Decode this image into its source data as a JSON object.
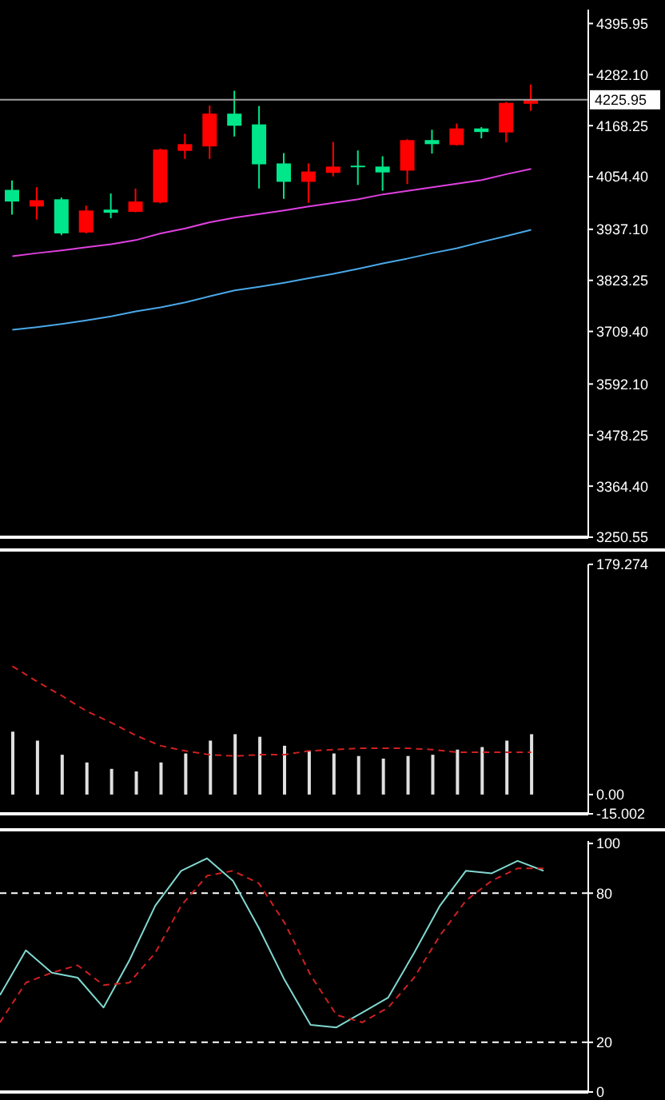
{
  "chart_data": [
    {
      "type": "candlestick",
      "categories": [
        null,
        null,
        null,
        null,
        null,
        null,
        null,
        null,
        null,
        null,
        null,
        null,
        null,
        null,
        null,
        null,
        null,
        null,
        null,
        null,
        null,
        null
      ],
      "tick_labels": "y",
      "ohlc": [
        [
          4025,
          4046,
          3970,
          3999
        ],
        [
          3988,
          4031,
          3959,
          4002
        ],
        [
          4004,
          4008,
          3924,
          3928
        ],
        [
          3930,
          3990,
          3928,
          3979
        ],
        [
          3981,
          4017,
          3962,
          3974
        ],
        [
          3976,
          4028,
          3975,
          3999
        ],
        [
          3997,
          4117,
          3995,
          4115
        ],
        [
          4112,
          4150,
          4094,
          4127
        ],
        [
          4122,
          4213,
          4094,
          4195
        ],
        [
          4195,
          4246,
          4144,
          4168
        ],
        [
          4171,
          4212,
          4028,
          4082
        ],
        [
          4084,
          4107,
          4005,
          4043
        ],
        [
          4043,
          4084,
          3996,
          4066
        ],
        [
          4063,
          4132,
          4055,
          4077
        ],
        [
          4079,
          4113,
          4036,
          4077
        ],
        [
          4077,
          4100,
          4023,
          4064
        ],
        [
          4068,
          4138,
          4038,
          4136
        ],
        [
          4136,
          4159,
          4106,
          4127
        ],
        [
          4125,
          4173,
          4124,
          4162
        ],
        [
          4162,
          4165,
          4140,
          4154
        ],
        [
          4153,
          4221,
          4131,
          4219
        ],
        [
          4217,
          4260,
          4201,
          4225.95
        ]
      ],
      "colors": [
        "#00e68a",
        "#ff0000",
        "#00e68a",
        "#ff0000",
        "#00e68a",
        "#ff0000",
        "#ff0000",
        "#ff0000",
        "#ff0000",
        "#00e68a",
        "#00e68a",
        "#00e68a",
        "#ff0000",
        "#ff0000",
        "#00e68a",
        "#00e68a",
        "#ff0000",
        "#00e68a",
        "#ff0000",
        "#00e68a",
        "#ff0000",
        "#ff0000"
      ],
      "series": [
        {
          "type": "line",
          "color": "#e040e0",
          "values": [
            3877,
            3884,
            3890,
            3897,
            3904,
            3913,
            3928,
            3939,
            3953,
            3963,
            3971,
            3979,
            3988,
            3996,
            4004,
            4015,
            4023,
            4031,
            4039,
            4047,
            4060,
            4072
          ]
        },
        {
          "type": "line",
          "color": "#4aa8e8",
          "values": [
            3713,
            3719,
            3726,
            3734,
            3743,
            3754,
            3763,
            3774,
            3788,
            3801,
            3809,
            3818,
            3828,
            3838,
            3849,
            3861,
            3872,
            3884,
            3895,
            3909,
            3922,
            3936
          ]
        }
      ],
      "ylim": [
        3250.55,
        4427
      ],
      "yticks": [
        4395.95,
        {
          "value": 4282.1,
          "label": "4282.10"
        },
        4168.25,
        {
          "value": 4054.4,
          "label": "4054.40"
        },
        {
          "value": 3937.1,
          "label": "3937.10"
        },
        3823.25,
        {
          "value": 3709.4,
          "label": "3709.40"
        },
        {
          "value": 3592.1,
          "label": "3592.10"
        },
        3478.25,
        {
          "value": 3364.4,
          "label": "3364.40"
        },
        3250.55
      ],
      "ref_lines": [
        {
          "axis": "y",
          "value": 4225.95,
          "label": "4225.95",
          "color": "#a0a0a0"
        }
      ]
    },
    {
      "type": "bar",
      "categories": [
        null,
        null,
        null,
        null,
        null,
        null,
        null,
        null,
        null,
        null,
        null,
        null,
        null,
        null,
        null,
        null,
        null,
        null,
        null,
        null,
        null,
        null
      ],
      "tick_labels": "y",
      "series": [
        {
          "type": "bar",
          "color": "#e0e0e0",
          "values": [
            49,
            42,
            31,
            25,
            20,
            18,
            25,
            32,
            42,
            47,
            45,
            38,
            34,
            32,
            30,
            28,
            30,
            31,
            35,
            37,
            42,
            47
          ]
        },
        {
          "type": "line",
          "color": "#d02020",
          "line_style": "dashed",
          "values": [
            100,
            88,
            77,
            65,
            56,
            46,
            38,
            34,
            31,
            30,
            31,
            31,
            34,
            35,
            36,
            36,
            36,
            35,
            33,
            33,
            33,
            33
          ]
        }
      ],
      "ylim": [
        -15.002,
        179.274
      ],
      "yticks": [
        179.274,
        {
          "value": 0,
          "label": "0.00"
        },
        -15.002
      ]
    },
    {
      "type": "line",
      "categories": [
        null,
        null,
        null,
        null,
        null,
        null,
        null,
        null,
        null,
        null,
        null,
        null,
        null,
        null,
        null,
        null,
        null,
        null,
        null,
        null,
        null,
        null
      ],
      "tick_labels": "y",
      "series": [
        {
          "type": "line",
          "color": "#80d8d0",
          "values": [
            39,
            57,
            48,
            46,
            34,
            53,
            75,
            89,
            94,
            85,
            66,
            45,
            27,
            26,
            32,
            38,
            56,
            75,
            89,
            88,
            93,
            89
          ]
        },
        {
          "type": "line",
          "color": "#d02020",
          "line_style": "dashed",
          "values": [
            28,
            44,
            48,
            51,
            43,
            44,
            56,
            75,
            87,
            89,
            84,
            68,
            47,
            31,
            28,
            34,
            46,
            63,
            77,
            85,
            90,
            90
          ]
        }
      ],
      "ylim": [
        0,
        101
      ],
      "yticks": [
        0,
        20,
        80,
        100
      ],
      "ref_lines": [
        {
          "axis": "y",
          "value": 80,
          "color": "#ffffff",
          "line_style": "dashed"
        },
        {
          "axis": "y",
          "value": 20,
          "color": "#ffffff",
          "line_style": "dashed"
        }
      ]
    }
  ]
}
